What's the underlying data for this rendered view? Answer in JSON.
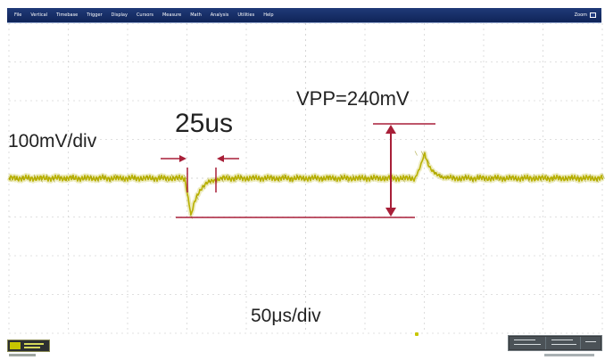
{
  "app": {
    "menubar": {
      "items": [
        "File",
        "Vertical",
        "Timebase",
        "Trigger",
        "Display",
        "Cursors",
        "Measure",
        "Math",
        "Analysis",
        "Utilities",
        "Help"
      ],
      "zoom_label": "Zoom"
    },
    "annotations": {
      "vertical_scale": "100mV/div",
      "time_interval": "25us",
      "peak_to_peak": "VPP=240mV",
      "horizontal_scale": "50μs/div"
    },
    "colors": {
      "trace": "#b8b000",
      "grid": "#d3d3d3",
      "marker": "#a81f38",
      "menubar": "#1a336d"
    }
  }
}
